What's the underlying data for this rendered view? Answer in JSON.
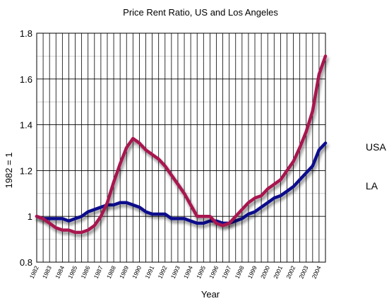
{
  "chart_data": {
    "type": "line",
    "title": "Price Rent Ratio, US and Los Angeles",
    "xlabel": "Year",
    "ylabel": "1982 = 1",
    "ylim": [
      0.8,
      1.8
    ],
    "y_ticks": [
      "0.8",
      "1",
      "1.2",
      "1.4",
      "1.6",
      "1.8"
    ],
    "y_tick_values": [
      0.8,
      1.0,
      1.2,
      1.4,
      1.6,
      1.8
    ],
    "x_range": [
      1982,
      2004.5
    ],
    "x_ticks": [
      "1982",
      "1983",
      "1984",
      "1985",
      "1986",
      "1987",
      "1988",
      "1989",
      "1990",
      "1991",
      "1992",
      "1993",
      "1994",
      "1995",
      "1996",
      "1997",
      "1998",
      "1999",
      "2000",
      "2001",
      "2002",
      "2003",
      "2004"
    ],
    "grid": true,
    "legend_position": "right",
    "series": [
      {
        "name": "USA",
        "color": "#0a0a8c",
        "x": [
          1982,
          1982.5,
          1983,
          1983.5,
          1984,
          1984.5,
          1985,
          1985.5,
          1986,
          1986.5,
          1987,
          1987.5,
          1988,
          1988.5,
          1989,
          1989.5,
          1990,
          1990.5,
          1991,
          1991.5,
          1992,
          1992.5,
          1993,
          1993.5,
          1994,
          1994.5,
          1995,
          1995.5,
          1996,
          1996.5,
          1997,
          1997.5,
          1998,
          1998.5,
          1999,
          1999.5,
          2000,
          2000.5,
          2001,
          2001.5,
          2002,
          2002.5,
          2003,
          2003.5,
          2004,
          2004.5
        ],
        "values": [
          1.0,
          0.99,
          0.99,
          0.99,
          0.99,
          0.98,
          0.99,
          1.0,
          1.02,
          1.03,
          1.04,
          1.05,
          1.05,
          1.06,
          1.06,
          1.05,
          1.04,
          1.02,
          1.01,
          1.01,
          1.01,
          0.99,
          0.99,
          0.99,
          0.98,
          0.97,
          0.97,
          0.98,
          0.98,
          0.97,
          0.97,
          0.98,
          0.99,
          1.01,
          1.02,
          1.04,
          1.06,
          1.08,
          1.09,
          1.11,
          1.13,
          1.16,
          1.19,
          1.22,
          1.29,
          1.32
        ]
      },
      {
        "name": "LA",
        "color": "#a8194f",
        "x": [
          1982,
          1982.5,
          1983,
          1983.5,
          1984,
          1984.5,
          1985,
          1985.5,
          1986,
          1986.5,
          1987,
          1987.5,
          1988,
          1988.5,
          1989,
          1989.5,
          1990,
          1990.5,
          1991,
          1991.5,
          1992,
          1992.5,
          1993,
          1993.5,
          1994,
          1994.5,
          1995,
          1995.5,
          1996,
          1996.5,
          1997,
          1997.5,
          1998,
          1998.5,
          1999,
          1999.5,
          2000,
          2000.5,
          2001,
          2001.5,
          2002,
          2002.5,
          2003,
          2003.5,
          2004,
          2004.5
        ],
        "values": [
          1.0,
          0.99,
          0.97,
          0.95,
          0.94,
          0.94,
          0.93,
          0.93,
          0.94,
          0.96,
          1.0,
          1.06,
          1.15,
          1.23,
          1.3,
          1.34,
          1.32,
          1.29,
          1.27,
          1.25,
          1.22,
          1.18,
          1.14,
          1.1,
          1.05,
          1.0,
          1.0,
          1.0,
          0.97,
          0.96,
          0.97,
          1.0,
          1.03,
          1.06,
          1.08,
          1.09,
          1.12,
          1.14,
          1.16,
          1.2,
          1.24,
          1.3,
          1.37,
          1.46,
          1.62,
          1.7
        ]
      }
    ]
  }
}
